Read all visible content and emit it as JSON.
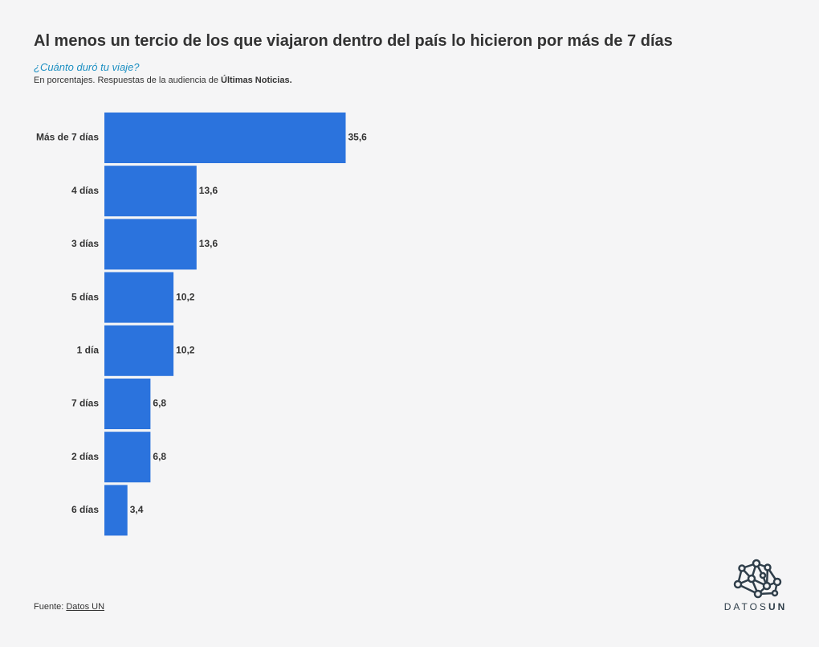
{
  "header": {
    "title": "Al menos un tercio de los que viajaron dentro del país lo hicieron por más de 7 días",
    "subtitle": "¿Cuánto duró tu viaje?",
    "note_prefix": "En porcentajes. Respuestas de la audiencia de ",
    "note_bold": "Últimas Noticias."
  },
  "chart_data": {
    "type": "bar",
    "orientation": "horizontal",
    "categories": [
      "Más de 7 días",
      "4 días",
      "3 días",
      "5 días",
      "1 día",
      "7 días",
      "2 días",
      "6 días"
    ],
    "values": [
      35.6,
      13.6,
      13.6,
      10.2,
      10.2,
      6.8,
      6.8,
      3.4
    ],
    "value_labels": [
      "35,6",
      "13,6",
      "13,6",
      "10,2",
      "10,2",
      "6,8",
      "6,8",
      "3,4"
    ],
    "bar_color": "#2b73dd",
    "grid": false,
    "legend": "none"
  },
  "footer": {
    "source_prefix": "Fuente: ",
    "source_link": "Datos UN"
  },
  "logo": {
    "icon": "network-nodes-icon",
    "text_regular": "DATOS",
    "text_bold": "UN",
    "color": "#2f3e4a"
  }
}
